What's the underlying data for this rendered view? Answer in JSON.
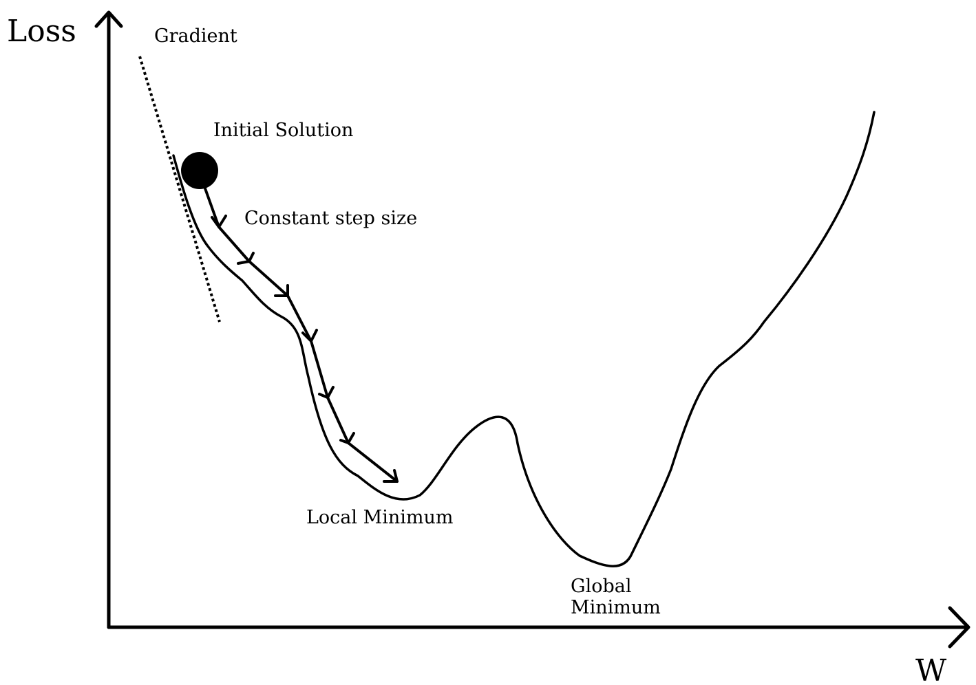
{
  "axes": {
    "y_label": "Loss",
    "x_label": "W"
  },
  "annotations": {
    "gradient": "Gradient",
    "initial_solution": "Initial Solution",
    "step_size": "Constant step size",
    "local_minimum": "Local Minimum",
    "global_minimum_line1": "Global",
    "global_minimum_line2": "Minimum"
  },
  "colors": {
    "ink": "#000000",
    "background": "#ffffff"
  }
}
